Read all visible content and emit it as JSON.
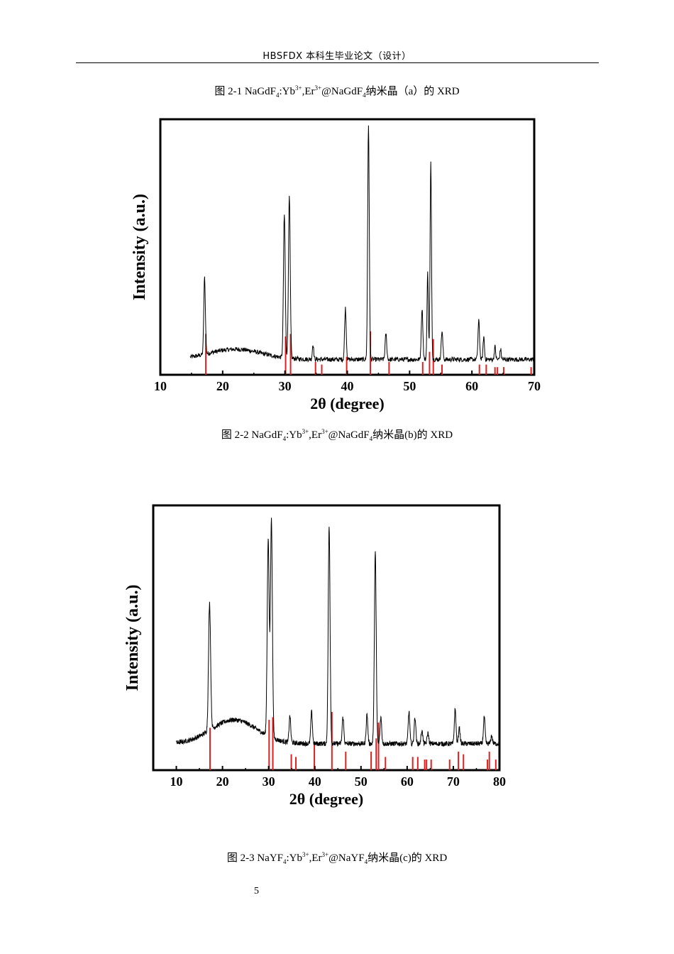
{
  "header": {
    "title": "HBSFDX 本科生毕业论文（设计）"
  },
  "captions": {
    "fig1": {
      "prefix": "图 2-1  NaGdF",
      "s1": "4",
      "p2": ":Yb",
      "u1": "3+",
      "p3": ",Er",
      "u2": "3+",
      "p4": "@NaGdF",
      "s2": "4",
      "suffix": "纳米晶（a）的 XRD"
    },
    "fig2": {
      "prefix": "图 2-2  NaGdF",
      "s1": "4",
      "p2": ":Yb",
      "u1": "3+",
      "p3": ",Er",
      "u2": "3+",
      "p4": "@NaGdF",
      "s2": "4",
      "suffix": "纳米晶(b)的 XRD"
    },
    "fig3": {
      "prefix": "图 2-3  NaYF",
      "s1": "4",
      "p2": ":Yb",
      "u1": "3+",
      "p3": ",Er",
      "u2": "3+",
      "p4": "@NaYF",
      "s2": "4",
      "suffix": "纳米晶(c)的 XRD"
    }
  },
  "page_number": "5",
  "colors": {
    "pattern": "#000000",
    "reference": "#e02020"
  },
  "chart_data": [
    {
      "type": "line",
      "title": "",
      "xlabel": "2θ (degree)",
      "ylabel": "Intensity (a.u.)",
      "xlim": [
        10,
        70
      ],
      "xticks": [
        10,
        20,
        30,
        40,
        50,
        60,
        70
      ],
      "x_range": [
        14.8,
        70
      ],
      "baseline": 0.06,
      "hump": {
        "center": 22,
        "width": 6,
        "height": 0.04
      },
      "peaks": [
        {
          "x": 17.1,
          "h": 0.3,
          "w": 0.18
        },
        {
          "x": 29.9,
          "h": 0.56,
          "w": 0.2
        },
        {
          "x": 30.7,
          "h": 0.63,
          "w": 0.2
        },
        {
          "x": 34.5,
          "h": 0.06,
          "w": 0.15
        },
        {
          "x": 39.7,
          "h": 0.2,
          "w": 0.18
        },
        {
          "x": 43.4,
          "h": 0.92,
          "w": 0.18
        },
        {
          "x": 46.2,
          "h": 0.1,
          "w": 0.18
        },
        {
          "x": 52.0,
          "h": 0.2,
          "w": 0.18
        },
        {
          "x": 52.9,
          "h": 0.34,
          "w": 0.15
        },
        {
          "x": 53.4,
          "h": 0.77,
          "w": 0.16
        },
        {
          "x": 55.2,
          "h": 0.11,
          "w": 0.18
        },
        {
          "x": 61.1,
          "h": 0.15,
          "w": 0.18
        },
        {
          "x": 61.9,
          "h": 0.09,
          "w": 0.15
        },
        {
          "x": 63.7,
          "h": 0.05,
          "w": 0.15
        },
        {
          "x": 64.6,
          "h": 0.04,
          "w": 0.15
        }
      ],
      "reference_lines": [
        {
          "x": 17.3,
          "h": 0.16
        },
        {
          "x": 30.1,
          "h": 0.15
        },
        {
          "x": 30.9,
          "h": 0.16
        },
        {
          "x": 34.9,
          "h": 0.05
        },
        {
          "x": 35.9,
          "h": 0.04
        },
        {
          "x": 39.9,
          "h": 0.07
        },
        {
          "x": 43.7,
          "h": 0.17
        },
        {
          "x": 46.7,
          "h": 0.05
        },
        {
          "x": 52.1,
          "h": 0.05
        },
        {
          "x": 53.2,
          "h": 0.09
        },
        {
          "x": 53.8,
          "h": 0.14
        },
        {
          "x": 55.2,
          "h": 0.04
        },
        {
          "x": 61.2,
          "h": 0.04
        },
        {
          "x": 62.3,
          "h": 0.04
        },
        {
          "x": 63.7,
          "h": 0.03
        },
        {
          "x": 64.1,
          "h": 0.03
        },
        {
          "x": 65.1,
          "h": 0.03
        },
        {
          "x": 69.5,
          "h": 0.03
        }
      ],
      "reference_color": "#e02020"
    },
    {
      "type": "line",
      "title": "",
      "xlabel": "2θ (degree)",
      "ylabel": "Intensity (a.u.)",
      "xlim": [
        5,
        80
      ],
      "xticks": [
        10,
        20,
        30,
        40,
        50,
        60,
        70,
        80
      ],
      "x_range": [
        10,
        80
      ],
      "baseline": 0.1,
      "hump": {
        "center": 22.5,
        "width": 7,
        "height": 0.09
      },
      "peaks": [
        {
          "x": 17.2,
          "h": 0.48,
          "w": 0.32
        },
        {
          "x": 29.9,
          "h": 0.74,
          "w": 0.3
        },
        {
          "x": 30.6,
          "h": 0.82,
          "w": 0.3
        },
        {
          "x": 34.6,
          "h": 0.1,
          "w": 0.25
        },
        {
          "x": 39.3,
          "h": 0.12,
          "w": 0.25
        },
        {
          "x": 43.1,
          "h": 0.82,
          "w": 0.28
        },
        {
          "x": 46.1,
          "h": 0.1,
          "w": 0.25
        },
        {
          "x": 51.3,
          "h": 0.11,
          "w": 0.25
        },
        {
          "x": 53.1,
          "h": 0.72,
          "w": 0.28
        },
        {
          "x": 54.3,
          "h": 0.1,
          "w": 0.25
        },
        {
          "x": 60.4,
          "h": 0.12,
          "w": 0.25
        },
        {
          "x": 61.7,
          "h": 0.1,
          "w": 0.25
        },
        {
          "x": 63.2,
          "h": 0.05,
          "w": 0.25
        },
        {
          "x": 64.5,
          "h": 0.04,
          "w": 0.25
        },
        {
          "x": 70.4,
          "h": 0.13,
          "w": 0.25
        },
        {
          "x": 71.3,
          "h": 0.06,
          "w": 0.25
        },
        {
          "x": 76.7,
          "h": 0.1,
          "w": 0.25
        },
        {
          "x": 78.3,
          "h": 0.03,
          "w": 0.25
        }
      ],
      "reference_lines": [
        {
          "x": 17.3,
          "h": 0.16
        },
        {
          "x": 30.1,
          "h": 0.19
        },
        {
          "x": 30.9,
          "h": 0.2
        },
        {
          "x": 34.9,
          "h": 0.06
        },
        {
          "x": 35.9,
          "h": 0.05
        },
        {
          "x": 39.9,
          "h": 0.1
        },
        {
          "x": 43.7,
          "h": 0.22
        },
        {
          "x": 46.7,
          "h": 0.07
        },
        {
          "x": 52.2,
          "h": 0.07
        },
        {
          "x": 53.3,
          "h": 0.12
        },
        {
          "x": 53.8,
          "h": 0.18
        },
        {
          "x": 55.3,
          "h": 0.05
        },
        {
          "x": 61.2,
          "h": 0.05
        },
        {
          "x": 62.3,
          "h": 0.05
        },
        {
          "x": 63.8,
          "h": 0.04
        },
        {
          "x": 64.2,
          "h": 0.04
        },
        {
          "x": 65.2,
          "h": 0.04
        },
        {
          "x": 69.2,
          "h": 0.04
        },
        {
          "x": 71.1,
          "h": 0.07
        },
        {
          "x": 72.2,
          "h": 0.06
        },
        {
          "x": 77.4,
          "h": 0.04
        },
        {
          "x": 77.8,
          "h": 0.07
        },
        {
          "x": 79.2,
          "h": 0.04
        }
      ],
      "reference_color": "#e02020"
    }
  ]
}
